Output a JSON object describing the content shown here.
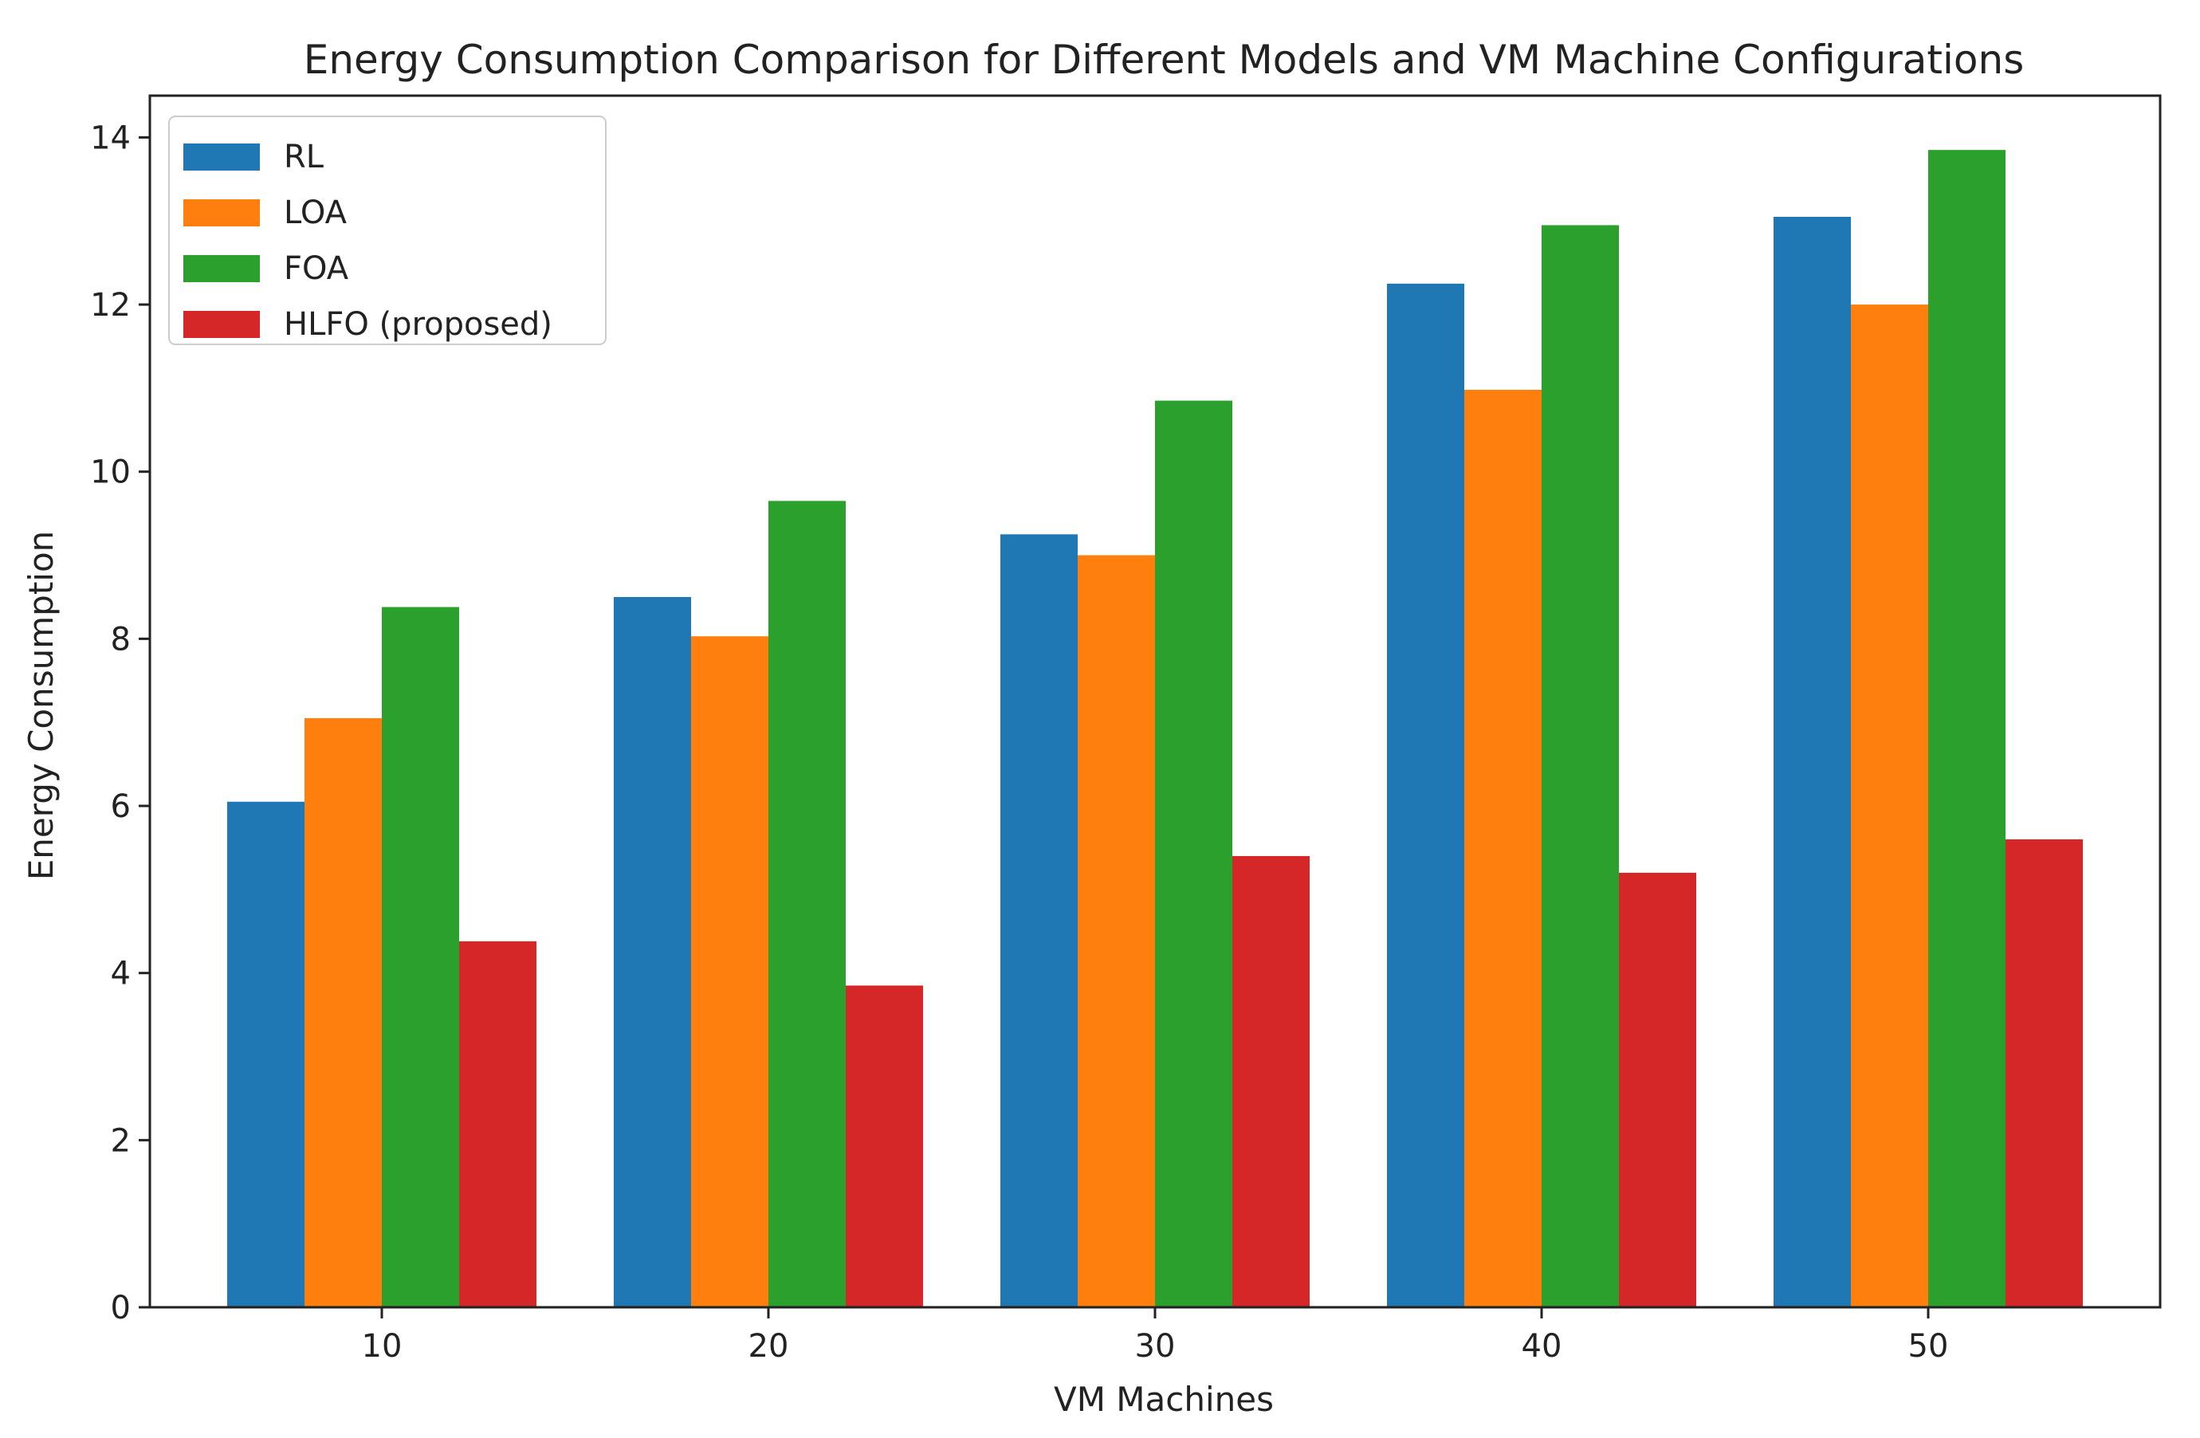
{
  "chart_data": {
    "type": "bar",
    "title": "Energy Consumption Comparison for Different Models and VM Machine Configurations",
    "xlabel": "VM Machines",
    "ylabel": "Energy Consumption",
    "categories": [
      "10",
      "20",
      "30",
      "40",
      "50"
    ],
    "series": [
      {
        "name": "RL",
        "color": "#1f77b4",
        "values": [
          6.05,
          8.5,
          9.25,
          12.25,
          13.05
        ]
      },
      {
        "name": "LOA",
        "color": "#ff7f0e",
        "values": [
          7.05,
          8.03,
          9.0,
          10.98,
          12.0
        ]
      },
      {
        "name": "FOA",
        "color": "#2ca02c",
        "values": [
          8.38,
          9.65,
          10.85,
          12.95,
          13.85
        ]
      },
      {
        "name": "HLFO (proposed)",
        "color": "#d62728",
        "values": [
          4.38,
          3.85,
          5.4,
          5.2,
          5.6
        ]
      }
    ],
    "ylim": [
      0,
      14.5
    ],
    "yticks": [
      0,
      2,
      4,
      6,
      8,
      10,
      12,
      14
    ],
    "grid": false,
    "legend": "top-left"
  }
}
